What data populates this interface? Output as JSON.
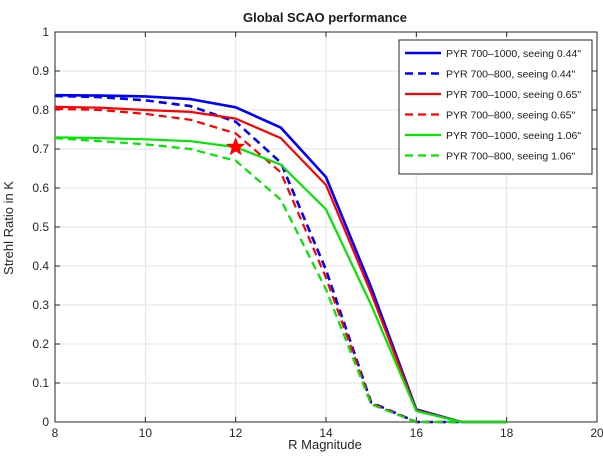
{
  "chart_data": {
    "type": "line",
    "title": "Global SCAO performance",
    "xlabel": "R Magnitude",
    "ylabel": "Strehl Ratio in K",
    "xlim": [
      8,
      20
    ],
    "ylim": [
      0,
      1
    ],
    "xticks": [
      "8",
      "10",
      "12",
      "14",
      "16",
      "18",
      "20"
    ],
    "yticks": [
      "0",
      "0.1",
      "0.2",
      "0.3",
      "0.4",
      "0.5",
      "0.6",
      "0.7",
      "0.8",
      "0.9",
      "1"
    ],
    "grid": true,
    "legend_position": "top-right",
    "x": [
      8,
      9,
      10,
      11,
      12,
      13,
      14,
      15,
      16,
      17,
      18,
      19
    ],
    "series": [
      {
        "name": "PYR 700–1000, seeing 0.44\"",
        "color": "#0000ff",
        "dash": "solid",
        "values": [
          0.838,
          0.837,
          0.835,
          0.828,
          0.807,
          0.755,
          0.628,
          0.345,
          0.032,
          0.0,
          0.0,
          null
        ]
      },
      {
        "name": "PYR 700–800, seeing 0.44\"",
        "color": "#0000ff",
        "dash": "dashed",
        "values": [
          0.836,
          0.833,
          0.825,
          0.81,
          0.77,
          0.665,
          0.39,
          0.05,
          0.0,
          0.0,
          null,
          null
        ]
      },
      {
        "name": "PYR 700–1000, seeing 0.65\"",
        "color": "#ff0000",
        "dash": "solid",
        "values": [
          0.808,
          0.806,
          0.8,
          0.795,
          0.778,
          0.728,
          0.608,
          0.33,
          0.03,
          0.0,
          0.0,
          null
        ]
      },
      {
        "name": "PYR 700–800, seeing 0.65\"",
        "color": "#ff0000",
        "dash": "dashed",
        "values": [
          0.803,
          0.8,
          0.79,
          0.775,
          0.74,
          0.64,
          0.37,
          0.048,
          0.0,
          0.0,
          null,
          null
        ]
      },
      {
        "name": "PYR 700–1000, seeing 1.06\"",
        "color": "#00e600",
        "dash": "solid",
        "values": [
          0.73,
          0.728,
          0.725,
          0.72,
          0.705,
          0.66,
          0.545,
          0.3,
          0.028,
          0.0,
          0.0,
          null
        ]
      },
      {
        "name": "PYR 700–800, seeing 1.06\"",
        "color": "#00e600",
        "dash": "dashed",
        "values": [
          0.728,
          0.72,
          0.712,
          0.7,
          0.67,
          0.57,
          0.34,
          0.045,
          0.0,
          0.0,
          null,
          null
        ]
      }
    ],
    "annotations": [
      {
        "type": "star-marker",
        "x": 12,
        "y": 0.705,
        "color": "#ff0000"
      }
    ]
  }
}
